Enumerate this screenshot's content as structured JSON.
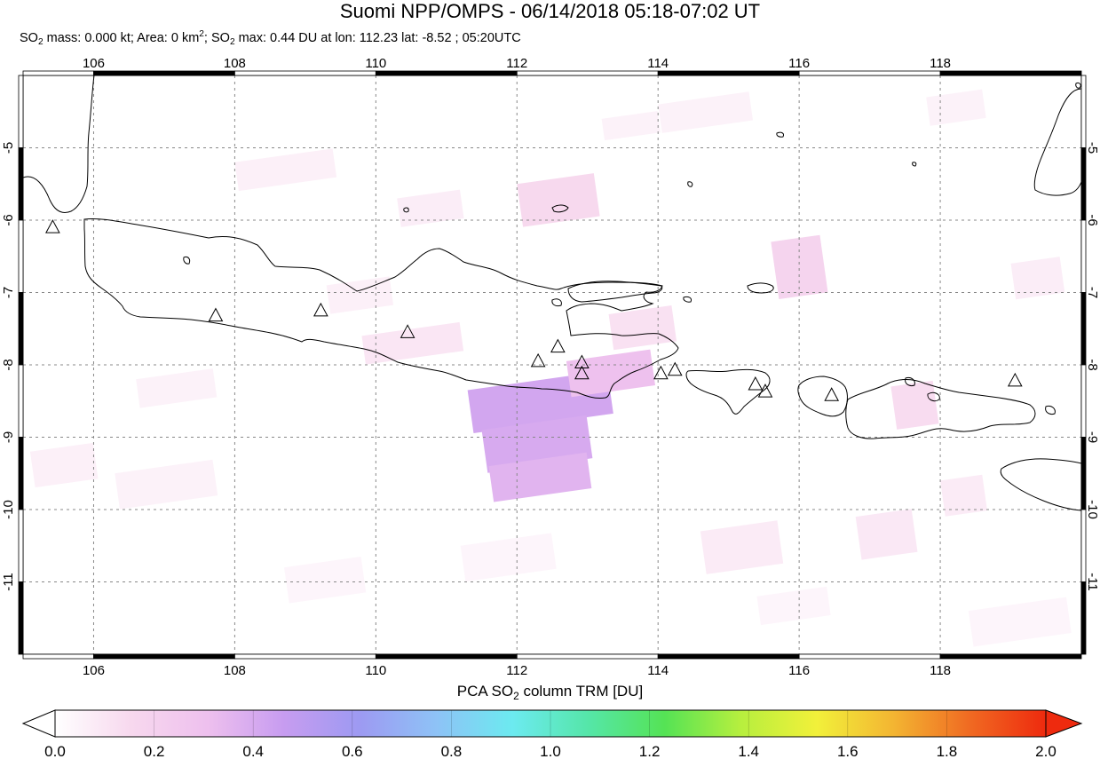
{
  "header": {
    "title": "Suomi NPP/OMPS - 06/14/2018 05:18-07:02 UT",
    "subtitle": {
      "p1": "SO",
      "p1_sub": "2",
      "p2": " mass: 0.000 kt; Area: 0 km",
      "p2_sup": "2",
      "p3": "; SO",
      "p3_sub": "2",
      "p4": " max: 0.44 DU at lon: 112.23 lat: -8.52 ; 05:20UTC"
    }
  },
  "map": {
    "lon_range": [
      105,
      120
    ],
    "lat_range": [
      -12,
      -4
    ],
    "lon_ticks": [
      {
        "value": 106,
        "label": "106"
      },
      {
        "value": 108,
        "label": "108"
      },
      {
        "value": 110,
        "label": "110"
      },
      {
        "value": 112,
        "label": "112"
      },
      {
        "value": 114,
        "label": "114"
      },
      {
        "value": 116,
        "label": "116"
      },
      {
        "value": 118,
        "label": "118"
      }
    ],
    "lat_ticks": [
      {
        "value": -5,
        "label": "-5"
      },
      {
        "value": -6,
        "label": "-6"
      },
      {
        "value": -7,
        "label": "-7"
      },
      {
        "value": -8,
        "label": "-8"
      },
      {
        "value": -9,
        "label": "-9"
      },
      {
        "value": -10,
        "label": "-10"
      },
      {
        "value": -11,
        "label": "-11"
      }
    ],
    "grid": "dashed",
    "coastline_color": "#000000",
    "volcano_marker": "triangle",
    "volcanoes": [
      {
        "lon": 105.42,
        "lat": -6.1
      },
      {
        "lon": 107.73,
        "lat": -7.32
      },
      {
        "lon": 109.22,
        "lat": -7.25
      },
      {
        "lon": 110.45,
        "lat": -7.55
      },
      {
        "lon": 112.3,
        "lat": -7.95
      },
      {
        "lon": 112.58,
        "lat": -7.75
      },
      {
        "lon": 112.92,
        "lat": -7.97
      },
      {
        "lon": 112.92,
        "lat": -8.12
      },
      {
        "lon": 114.04,
        "lat": -8.12
      },
      {
        "lon": 114.24,
        "lat": -8.07
      },
      {
        "lon": 115.38,
        "lat": -8.27
      },
      {
        "lon": 115.52,
        "lat": -8.37
      },
      {
        "lon": 116.46,
        "lat": -8.42
      },
      {
        "lon": 119.06,
        "lat": -8.22
      }
    ],
    "so2_cells": [
      {
        "lon": 111.3,
        "lat": -8.35,
        "w": 2.0,
        "h": 0.6,
        "value": 0.42
      },
      {
        "lon": 111.5,
        "lat": -8.9,
        "w": 1.5,
        "h": 0.6,
        "value": 0.4
      },
      {
        "lon": 111.6,
        "lat": -9.4,
        "w": 1.4,
        "h": 0.5,
        "value": 0.36
      },
      {
        "lon": 112.7,
        "lat": -7.95,
        "w": 1.2,
        "h": 0.5,
        "value": 0.3
      },
      {
        "lon": 112.0,
        "lat": -5.5,
        "w": 1.1,
        "h": 0.6,
        "value": 0.15
      },
      {
        "lon": 115.6,
        "lat": -6.3,
        "w": 0.7,
        "h": 0.8,
        "value": 0.18
      },
      {
        "lon": 117.3,
        "lat": -8.3,
        "w": 0.6,
        "h": 0.6,
        "value": 0.14
      },
      {
        "lon": 113.3,
        "lat": -7.3,
        "w": 0.9,
        "h": 0.5,
        "value": 0.12
      },
      {
        "lon": 109.8,
        "lat": -7.6,
        "w": 1.4,
        "h": 0.4,
        "value": 0.1
      },
      {
        "lon": 108.0,
        "lat": -5.2,
        "w": 1.4,
        "h": 0.4,
        "value": 0.06
      },
      {
        "lon": 110.3,
        "lat": -5.7,
        "w": 0.9,
        "h": 0.4,
        "value": 0.07
      },
      {
        "lon": 113.2,
        "lat": -4.6,
        "w": 0.8,
        "h": 0.3,
        "value": 0.05
      },
      {
        "lon": 114.6,
        "lat": -10.3,
        "w": 1.1,
        "h": 0.6,
        "value": 0.08
      },
      {
        "lon": 116.8,
        "lat": -10.1,
        "w": 0.8,
        "h": 0.6,
        "value": 0.09
      },
      {
        "lon": 118.0,
        "lat": -9.6,
        "w": 0.6,
        "h": 0.5,
        "value": 0.08
      },
      {
        "lon": 106.3,
        "lat": -9.5,
        "w": 1.4,
        "h": 0.5,
        "value": 0.05
      },
      {
        "lon": 105.1,
        "lat": -9.2,
        "w": 0.9,
        "h": 0.5,
        "value": 0.06
      },
      {
        "lon": 119.0,
        "lat": -6.6,
        "w": 0.7,
        "h": 0.5,
        "value": 0.07
      },
      {
        "lon": 106.6,
        "lat": -8.2,
        "w": 1.1,
        "h": 0.4,
        "value": 0.05
      },
      {
        "lon": 108.7,
        "lat": -10.8,
        "w": 1.1,
        "h": 0.5,
        "value": 0.04
      },
      {
        "lon": 118.4,
        "lat": -11.4,
        "w": 1.4,
        "h": 0.5,
        "value": 0.04
      },
      {
        "lon": 109.3,
        "lat": -6.9,
        "w": 0.9,
        "h": 0.4,
        "value": 0.06
      },
      {
        "lon": 114.0,
        "lat": -4.4,
        "w": 1.3,
        "h": 0.4,
        "value": 0.05
      },
      {
        "lon": 117.8,
        "lat": -4.3,
        "w": 0.8,
        "h": 0.4,
        "value": 0.05
      },
      {
        "lon": 111.2,
        "lat": -10.5,
        "w": 1.3,
        "h": 0.5,
        "value": 0.04
      },
      {
        "lon": 115.4,
        "lat": -11.2,
        "w": 1.0,
        "h": 0.4,
        "value": 0.04
      }
    ]
  },
  "colorbar": {
    "title": {
      "p1": "PCA SO",
      "p1_sub": "2",
      "p2": " column TRM [DU]"
    },
    "min": 0.0,
    "max": 2.0,
    "ticks": [
      "0.0",
      "0.2",
      "0.4",
      "0.6",
      "0.8",
      "1.0",
      "1.2",
      "1.4",
      "1.6",
      "1.8",
      "2.0"
    ],
    "stops": [
      "#ffffff",
      "#f7d8ee",
      "#eec0ee",
      "#c79cf0",
      "#9d9af2",
      "#8ec2f6",
      "#6ceaf0",
      "#55e6a8",
      "#55e355",
      "#b7ef3e",
      "#f2f03a",
      "#f3b532",
      "#f06a22",
      "#ee2a0e"
    ],
    "under_color": "#ffffff",
    "over_color": "#ee2a0e"
  }
}
